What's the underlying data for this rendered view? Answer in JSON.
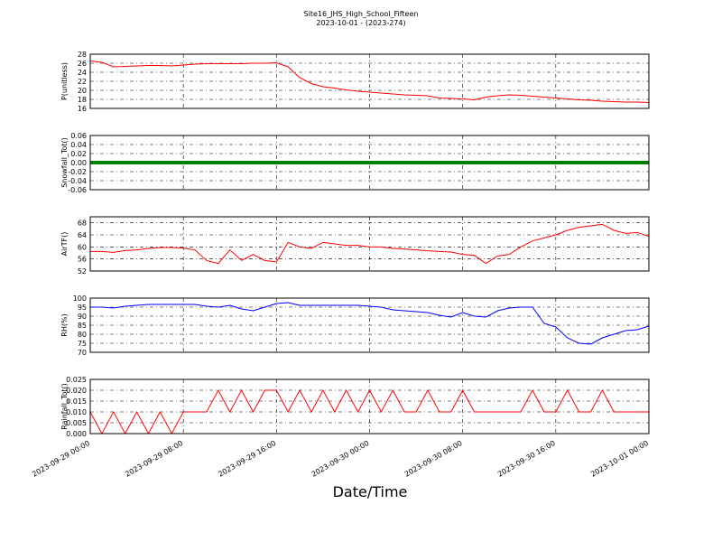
{
  "chart_data": [
    {
      "type": "line",
      "title": "Site16_JHS_High_School_Fifteen",
      "subtitle": "2023-10-01 - (2023-274)",
      "ylabel": "P(unitless)",
      "x": [
        "2023-09-29 00:00",
        "2023-09-29 01:00",
        "2023-09-29 02:00",
        "2023-09-29 03:00",
        "2023-09-29 04:00",
        "2023-09-29 05:00",
        "2023-09-29 06:00",
        "2023-09-29 07:00",
        "2023-09-29 08:00",
        "2023-09-29 09:00",
        "2023-09-29 10:00",
        "2023-09-29 11:00",
        "2023-09-29 12:00",
        "2023-09-29 13:00",
        "2023-09-29 14:00",
        "2023-09-29 15:00",
        "2023-09-29 16:00",
        "2023-09-29 17:00",
        "2023-09-29 18:00",
        "2023-09-29 19:00",
        "2023-09-29 20:00",
        "2023-09-29 21:00",
        "2023-09-29 22:00",
        "2023-09-29 23:00",
        "2023-09-30 00:00",
        "2023-09-30 01:00",
        "2023-09-30 02:00",
        "2023-09-30 03:00",
        "2023-09-30 04:00",
        "2023-09-30 05:00",
        "2023-09-30 06:00",
        "2023-09-30 07:00",
        "2023-09-30 08:00",
        "2023-09-30 09:00",
        "2023-09-30 10:00",
        "2023-09-30 11:00",
        "2023-09-30 12:00",
        "2023-09-30 13:00",
        "2023-09-30 14:00",
        "2023-09-30 15:00",
        "2023-09-30 16:00",
        "2023-09-30 17:00",
        "2023-09-30 18:00",
        "2023-09-30 19:00",
        "2023-09-30 20:00",
        "2023-09-30 21:00",
        "2023-09-30 22:00",
        "2023-09-30 23:00",
        "2023-10-01 00:00"
      ],
      "series": [
        {
          "color": "#ff0000",
          "values": [
            26.5,
            26.2,
            25.2,
            25.3,
            25.4,
            25.5,
            25.5,
            25.4,
            25.6,
            25.8,
            25.9,
            25.9,
            25.9,
            25.9,
            26,
            26,
            26.1,
            25.2,
            22.8,
            21.5,
            20.8,
            20.5,
            20.1,
            19.8,
            19.6,
            19.4,
            19.2,
            19,
            18.9,
            18.8,
            18.3,
            18.2,
            18.1,
            17.9,
            18.5,
            18.8,
            19,
            18.9,
            18.7,
            18.5,
            18.3,
            18.1,
            17.9,
            17.8,
            17.6,
            17.5,
            17.4,
            17.4,
            17.3
          ]
        }
      ],
      "xlim": [
        "2023-09-29 00:00",
        "2023-10-01 00:00"
      ],
      "xticks": [
        "2023-09-29 00:00",
        "2023-09-29 08:00",
        "2023-09-29 16:00",
        "2023-09-30 00:00",
        "2023-09-30 08:00",
        "2023-09-30 16:00",
        "2023-10-01 00:00"
      ],
      "ylim": [
        16,
        28
      ],
      "yticks": [
        16,
        18,
        20,
        22,
        24,
        26,
        28
      ],
      "grid": true
    },
    {
      "type": "line",
      "ylabel": "Snowfall_Tot()",
      "x": [
        "2023-09-29 00:00",
        "2023-09-29 01:00",
        "2023-09-29 02:00",
        "2023-09-29 03:00",
        "2023-09-29 04:00",
        "2023-09-29 05:00",
        "2023-09-29 06:00",
        "2023-09-29 07:00",
        "2023-09-29 08:00",
        "2023-09-29 09:00",
        "2023-09-29 10:00",
        "2023-09-29 11:00",
        "2023-09-29 12:00",
        "2023-09-29 13:00",
        "2023-09-29 14:00",
        "2023-09-29 15:00",
        "2023-09-29 16:00",
        "2023-09-29 17:00",
        "2023-09-29 18:00",
        "2023-09-29 19:00",
        "2023-09-29 20:00",
        "2023-09-29 21:00",
        "2023-09-29 22:00",
        "2023-09-29 23:00",
        "2023-09-30 00:00",
        "2023-09-30 01:00",
        "2023-09-30 02:00",
        "2023-09-30 03:00",
        "2023-09-30 04:00",
        "2023-09-30 05:00",
        "2023-09-30 06:00",
        "2023-09-30 07:00",
        "2023-09-30 08:00",
        "2023-09-30 09:00",
        "2023-09-30 10:00",
        "2023-09-30 11:00",
        "2023-09-30 12:00",
        "2023-09-30 13:00",
        "2023-09-30 14:00",
        "2023-09-30 15:00",
        "2023-09-30 16:00",
        "2023-09-30 17:00",
        "2023-09-30 18:00",
        "2023-09-30 19:00",
        "2023-09-30 20:00",
        "2023-09-30 21:00",
        "2023-09-30 22:00",
        "2023-09-30 23:00",
        "2023-10-01 00:00"
      ],
      "series": [
        {
          "color": "#008000",
          "values": [
            0,
            0,
            0,
            0,
            0,
            0,
            0,
            0,
            0,
            0,
            0,
            0,
            0,
            0,
            0,
            0,
            0,
            0,
            0,
            0,
            0,
            0,
            0,
            0,
            0,
            0,
            0,
            0,
            0,
            0,
            0,
            0,
            0,
            0,
            0,
            0,
            0,
            0,
            0,
            0,
            0,
            0,
            0,
            0,
            0,
            0,
            0,
            0,
            0
          ]
        }
      ],
      "xlim": [
        "2023-09-29 00:00",
        "2023-10-01 00:00"
      ],
      "xticks": [
        "2023-09-29 00:00",
        "2023-09-29 08:00",
        "2023-09-29 16:00",
        "2023-09-30 00:00",
        "2023-09-30 08:00",
        "2023-09-30 16:00",
        "2023-10-01 00:00"
      ],
      "ylim": [
        -0.06,
        0.06
      ],
      "yticks": [
        -0.06,
        -0.04,
        -0.02,
        {
          "value": 0,
          "label": "0.00"
        },
        0.02,
        0.04,
        0.06
      ],
      "grid": true
    },
    {
      "type": "line",
      "ylabel": "AirTF()",
      "x": [
        "2023-09-29 00:00",
        "2023-09-29 01:00",
        "2023-09-29 02:00",
        "2023-09-29 03:00",
        "2023-09-29 04:00",
        "2023-09-29 05:00",
        "2023-09-29 06:00",
        "2023-09-29 07:00",
        "2023-09-29 08:00",
        "2023-09-29 09:00",
        "2023-09-29 10:00",
        "2023-09-29 11:00",
        "2023-09-29 12:00",
        "2023-09-29 13:00",
        "2023-09-29 14:00",
        "2023-09-29 15:00",
        "2023-09-29 16:00",
        "2023-09-29 17:00",
        "2023-09-29 18:00",
        "2023-09-29 19:00",
        "2023-09-29 20:00",
        "2023-09-29 21:00",
        "2023-09-29 22:00",
        "2023-09-29 23:00",
        "2023-09-30 00:00",
        "2023-09-30 01:00",
        "2023-09-30 02:00",
        "2023-09-30 03:00",
        "2023-09-30 04:00",
        "2023-09-30 05:00",
        "2023-09-30 06:00",
        "2023-09-30 07:00",
        "2023-09-30 08:00",
        "2023-09-30 09:00",
        "2023-09-30 10:00",
        "2023-09-30 11:00",
        "2023-09-30 12:00",
        "2023-09-30 13:00",
        "2023-09-30 14:00",
        "2023-09-30 15:00",
        "2023-09-30 16:00",
        "2023-09-30 17:00",
        "2023-09-30 18:00",
        "2023-09-30 19:00",
        "2023-09-30 20:00",
        "2023-09-30 21:00",
        "2023-09-30 22:00",
        "2023-09-30 23:00",
        "2023-10-01 00:00"
      ],
      "series": [
        {
          "color": "#ff0000",
          "values": [
            58.5,
            58.5,
            58.2,
            58.8,
            59,
            59.5,
            59.8,
            59.8,
            59.6,
            59,
            55.5,
            54.5,
            59,
            55.5,
            57.5,
            55.5,
            55,
            61.5,
            60,
            59.5,
            61.5,
            61,
            60.5,
            60.5,
            60,
            60,
            59.5,
            59.3,
            59,
            58.7,
            58.5,
            58.3,
            57.5,
            57.2,
            54.5,
            57,
            57.5,
            60,
            62,
            63,
            64,
            65.5,
            66.5,
            67,
            67.5,
            65.5,
            64.5,
            64.8,
            63.5
          ]
        }
      ],
      "xlim": [
        "2023-09-29 00:00",
        "2023-10-01 00:00"
      ],
      "xticks": [
        "2023-09-29 00:00",
        "2023-09-29 08:00",
        "2023-09-29 16:00",
        "2023-09-30 00:00",
        "2023-09-30 08:00",
        "2023-09-30 16:00",
        "2023-10-01 00:00"
      ],
      "ylim": [
        52,
        70
      ],
      "yticks": [
        52,
        56,
        60,
        64,
        68
      ],
      "grid": true
    },
    {
      "type": "line",
      "ylabel": "RH(%)",
      "x": [
        "2023-09-29 00:00",
        "2023-09-29 01:00",
        "2023-09-29 02:00",
        "2023-09-29 03:00",
        "2023-09-29 04:00",
        "2023-09-29 05:00",
        "2023-09-29 06:00",
        "2023-09-29 07:00",
        "2023-09-29 08:00",
        "2023-09-29 09:00",
        "2023-09-29 10:00",
        "2023-09-29 11:00",
        "2023-09-29 12:00",
        "2023-09-29 13:00",
        "2023-09-29 14:00",
        "2023-09-29 15:00",
        "2023-09-29 16:00",
        "2023-09-29 17:00",
        "2023-09-29 18:00",
        "2023-09-29 19:00",
        "2023-09-29 20:00",
        "2023-09-29 21:00",
        "2023-09-29 22:00",
        "2023-09-29 23:00",
        "2023-09-30 00:00",
        "2023-09-30 01:00",
        "2023-09-30 02:00",
        "2023-09-30 03:00",
        "2023-09-30 04:00",
        "2023-09-30 05:00",
        "2023-09-30 06:00",
        "2023-09-30 07:00",
        "2023-09-30 08:00",
        "2023-09-30 09:00",
        "2023-09-30 10:00",
        "2023-09-30 11:00",
        "2023-09-30 12:00",
        "2023-09-30 13:00",
        "2023-09-30 14:00",
        "2023-09-30 15:00",
        "2023-09-30 16:00",
        "2023-09-30 17:00",
        "2023-09-30 18:00",
        "2023-09-30 19:00",
        "2023-09-30 20:00",
        "2023-09-30 21:00",
        "2023-09-30 22:00",
        "2023-09-30 23:00",
        "2023-10-01 00:00"
      ],
      "series": [
        {
          "color": "#0000ff",
          "values": [
            95,
            95,
            94.5,
            95.5,
            96,
            96.5,
            96.5,
            96.5,
            96.5,
            96.5,
            95.5,
            95,
            96,
            94,
            93,
            95,
            97,
            97.5,
            96,
            96,
            96,
            96,
            96,
            96,
            95.5,
            95,
            93.5,
            93,
            92.5,
            92,
            90.5,
            89.5,
            92,
            90,
            89.5,
            93,
            94.5,
            95,
            95,
            86,
            84,
            78,
            75,
            74.5,
            78,
            80,
            82,
            82.5,
            84.5
          ]
        }
      ],
      "xlim": [
        "2023-09-29 00:00",
        "2023-10-01 00:00"
      ],
      "xticks": [
        "2023-09-29 00:00",
        "2023-09-29 08:00",
        "2023-09-29 16:00",
        "2023-09-30 00:00",
        "2023-09-30 08:00",
        "2023-09-30 16:00",
        "2023-10-01 00:00"
      ],
      "ylim": [
        70,
        100
      ],
      "yticks": [
        70,
        75,
        80,
        85,
        90,
        95,
        100
      ],
      "grid": true
    },
    {
      "type": "line",
      "ylabel": "Rainfall_Tot()",
      "xlabel": "Date/Time",
      "x": [
        "2023-09-29 00:00",
        "2023-09-29 01:00",
        "2023-09-29 02:00",
        "2023-09-29 03:00",
        "2023-09-29 04:00",
        "2023-09-29 05:00",
        "2023-09-29 06:00",
        "2023-09-29 07:00",
        "2023-09-29 08:00",
        "2023-09-29 09:00",
        "2023-09-29 10:00",
        "2023-09-29 11:00",
        "2023-09-29 12:00",
        "2023-09-29 13:00",
        "2023-09-29 14:00",
        "2023-09-29 15:00",
        "2023-09-29 16:00",
        "2023-09-29 17:00",
        "2023-09-29 18:00",
        "2023-09-29 19:00",
        "2023-09-29 20:00",
        "2023-09-29 21:00",
        "2023-09-29 22:00",
        "2023-09-29 23:00",
        "2023-09-30 00:00",
        "2023-09-30 01:00",
        "2023-09-30 02:00",
        "2023-09-30 03:00",
        "2023-09-30 04:00",
        "2023-09-30 05:00",
        "2023-09-30 06:00",
        "2023-09-30 07:00",
        "2023-09-30 08:00",
        "2023-09-30 09:00",
        "2023-09-30 10:00",
        "2023-09-30 11:00",
        "2023-09-30 12:00",
        "2023-09-30 13:00",
        "2023-09-30 14:00",
        "2023-09-30 15:00",
        "2023-09-30 16:00",
        "2023-09-30 17:00",
        "2023-09-30 18:00",
        "2023-09-30 19:00",
        "2023-09-30 20:00",
        "2023-09-30 21:00",
        "2023-09-30 22:00",
        "2023-09-30 23:00",
        "2023-10-01 00:00"
      ],
      "series": [
        {
          "color": "#ff0000",
          "values": [
            0.01,
            0,
            0.01,
            0,
            0.01,
            0,
            0.01,
            0,
            0.01,
            0.01,
            0.01,
            0.02,
            0.01,
            0.02,
            0.01,
            0.02,
            0.02,
            0.01,
            0.02,
            0.01,
            0.02,
            0.01,
            0.02,
            0.01,
            0.02,
            0.01,
            0.02,
            0.01,
            0.01,
            0.02,
            0.01,
            0.01,
            0.02,
            0.01,
            0.01,
            0.01,
            0.01,
            0.01,
            0.02,
            0.01,
            0.01,
            0.02,
            0.01,
            0.01,
            0.02,
            0.01,
            0.01,
            0.01,
            0.01
          ]
        }
      ],
      "xlim": [
        "2023-09-29 00:00",
        "2023-10-01 00:00"
      ],
      "xticks": [
        "2023-09-29 00:00",
        "2023-09-29 08:00",
        "2023-09-29 16:00",
        "2023-09-30 00:00",
        "2023-09-30 08:00",
        "2023-09-30 16:00",
        "2023-10-01 00:00"
      ],
      "ylim": [
        0,
        0.025
      ],
      "yticks": [
        {
          "value": 0,
          "label": "0.000"
        },
        0.005,
        {
          "value": 0.01,
          "label": "0.010"
        },
        {
          "value": 0.015,
          "label": "0.015"
        },
        {
          "value": 0.02,
          "label": "0.020"
        },
        0.025
      ],
      "grid": true
    }
  ]
}
